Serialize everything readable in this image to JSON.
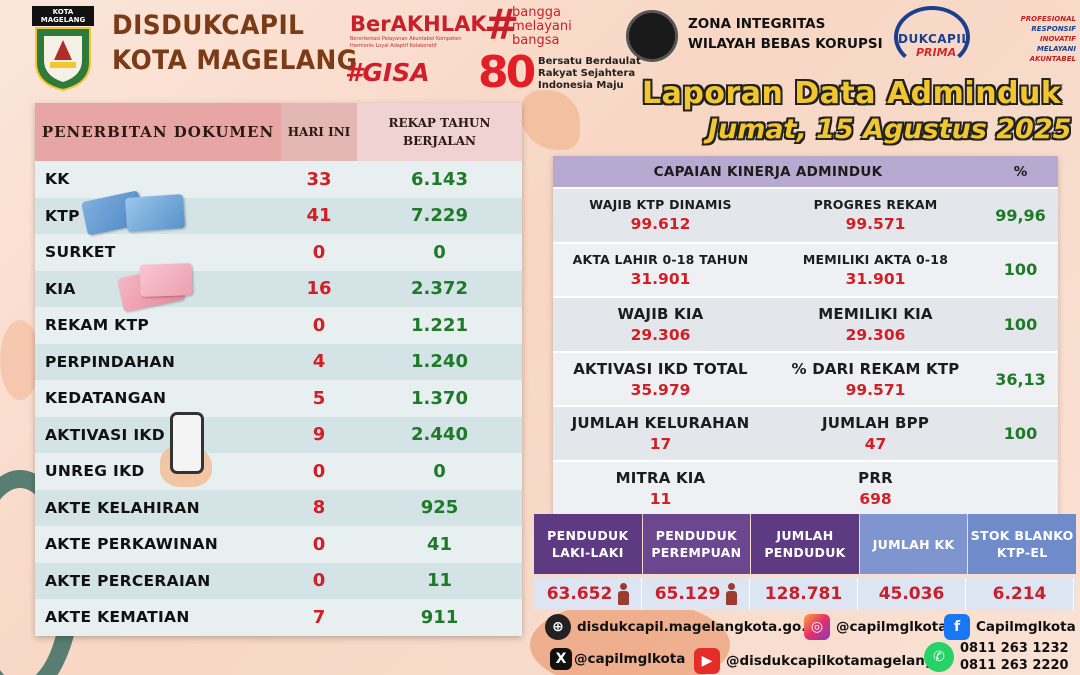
{
  "header": {
    "logo_caption": "KOTA MAGELANG",
    "brand_line1": "DISDUKCAPIL",
    "brand_line2": "KOTA MAGELANG",
    "berakhlak": "BerAKHLAK",
    "berakhlak_sub": "Berorientasi Pelayanan Akuntabel Kompeten Harmonis Loyal Adaptif Kolaboratif",
    "bangga": [
      "bangga",
      "melayani",
      "bangsa"
    ],
    "gisa": "#GISA",
    "eighty": "80",
    "bersatu": [
      "Bersatu Berdaulat",
      "Rakyat Sejahtera",
      "Indonesia Maju"
    ],
    "zi_line1": "ZONA INTEGRITAS",
    "zi_line2": "WILAYAH BEBAS KORUPSI",
    "prima_t1": "DUKCAPIL",
    "prima_t2": "PRIMA",
    "motto": [
      "PROFESIONAL",
      "RESPONSIF",
      "INOVATIF",
      "MELAYANI",
      "AKUNTABEL"
    ],
    "title": "Laporan Data Adminduk",
    "date": "Jumat, 15 Agustus 2025"
  },
  "left_table": {
    "col1": "PENERBITAN DOKUMEN",
    "col2": "HARI INI",
    "col3": "REKAP TAHUN BERJALAN",
    "rows": [
      {
        "name": "KK",
        "today": "33",
        "year": "6.143"
      },
      {
        "name": "KTP",
        "today": "41",
        "year": "7.229"
      },
      {
        "name": "SURKET",
        "today": "0",
        "year": "0"
      },
      {
        "name": "KIA",
        "today": "16",
        "year": "2.372"
      },
      {
        "name": "REKAM KTP",
        "today": "0",
        "year": "1.221"
      },
      {
        "name": "PERPINDAHAN",
        "today": "4",
        "year": "1.240"
      },
      {
        "name": "KEDATANGAN",
        "today": "5",
        "year": "1.370"
      },
      {
        "name": "AKTIVASI IKD",
        "today": "9",
        "year": "2.440"
      },
      {
        "name": "UNREG IKD",
        "today": "0",
        "year": "0"
      },
      {
        "name": "AKTE KELAHIRAN",
        "today": "8",
        "year": "925"
      },
      {
        "name": "AKTE PERKAWINAN",
        "today": "0",
        "year": "41"
      },
      {
        "name": "AKTE PERCERAIAN",
        "today": "0",
        "year": "11"
      },
      {
        "name": "AKTE KEMATIAN",
        "today": "7",
        "year": "911"
      }
    ]
  },
  "capaian": {
    "title": "CAPAIAN KINERJA ADMINDUK",
    "pct_head": "%",
    "rows": [
      {
        "l1": "WAJIB KTP DINAMIS",
        "v1": "99.612",
        "l2": "PROGRES REKAM",
        "v2": "99.571",
        "pct": "99,96",
        "big": false
      },
      {
        "l1": "AKTA LAHIR 0-18 TAHUN",
        "v1": "31.901",
        "l2": "MEMILIKI AKTA 0-18",
        "v2": "31.901",
        "pct": "100",
        "big": false
      },
      {
        "l1": "WAJIB KIA",
        "v1": "29.306",
        "l2": "MEMILIKI KIA",
        "v2": "29.306",
        "pct": "100",
        "big": true
      },
      {
        "l1": "AKTIVASI IKD TOTAL",
        "v1": "35.979",
        "l2": "% DARI REKAM KTP",
        "v2": "99.571",
        "pct": "36,13",
        "big": true
      },
      {
        "l1": "JUMLAH KELURAHAN",
        "v1": "17",
        "l2": "JUMLAH BPP",
        "v2": "47",
        "pct": "100",
        "big": true
      },
      {
        "l1": "MITRA KIA",
        "v1": "11",
        "l2": "PRR",
        "v2": "698",
        "pct": "",
        "big": true
      }
    ]
  },
  "stats": {
    "heads": [
      "PENDUDUK LAKI-LAKI",
      "PENDUDUK PEREMPUAN",
      "JUMLAH PENDUDUK",
      "JUMLAH KK",
      "STOK BLANKO KTP-EL"
    ],
    "values": [
      "63.652",
      "65.129",
      "128.781",
      "45.036",
      "6.214"
    ]
  },
  "contacts": {
    "website": "disdukcapil.magelangkota.go.id",
    "instagram": "@capilmglkota",
    "facebook": "Capilmglkota",
    "x": "@capilmglkota",
    "youtube": "@disdukcapilkotamagelang",
    "wa1": "0811 263 1232",
    "wa2": "0811 263 2220"
  },
  "icons": {
    "website": "globe-icon",
    "instagram": "instagram-icon",
    "facebook": "facebook-icon",
    "x": "x-icon",
    "youtube": "youtube-icon",
    "whatsapp": "whatsapp-icon",
    "male": "male-person-icon",
    "female": "female-person-icon"
  },
  "colors": {
    "accent_red": "#d11f25",
    "accent_green": "#1e7a28",
    "title_yellow": "#f2c62e",
    "stats_purple": "#5d3a82",
    "stats_blue": "#7f95cf"
  }
}
